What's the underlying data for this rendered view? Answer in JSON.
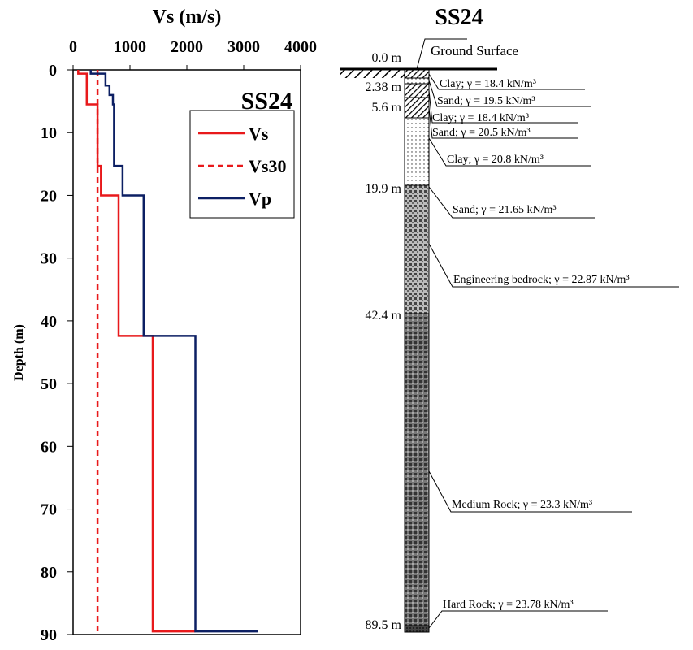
{
  "chart_data": {
    "type": "line",
    "title": "SS24",
    "xlabel": "Vs (m/s)",
    "ylabel": "Depth (m)",
    "xlim": [
      0,
      4000
    ],
    "xticks": [
      0,
      1000,
      2000,
      3000,
      4000
    ],
    "ylim": [
      0,
      90
    ],
    "yticks": [
      0,
      10,
      20,
      30,
      40,
      50,
      60,
      70,
      80,
      90
    ],
    "y_inverted": true,
    "legend": "upper right",
    "series": [
      {
        "name": "Vs",
        "color": "#e8191b",
        "dash": false,
        "x": [
          90,
          90,
          240,
          240,
          430,
          430,
          490,
          490,
          800,
          800,
          1400,
          1400,
          2150
        ],
        "values": [
          0,
          0.6,
          0.6,
          5.5,
          5.5,
          15.3,
          15.3,
          20,
          20,
          42.4,
          42.4,
          89.5,
          89.5
        ]
      },
      {
        "name": "Vs30",
        "color": "#e8191b",
        "dash": true,
        "x": [
          430,
          430
        ],
        "values": [
          0,
          90
        ]
      },
      {
        "name": "Vp",
        "color": "#0c1f63",
        "dash": false,
        "x": [
          310,
          310,
          570,
          570,
          640,
          640,
          700,
          700,
          720,
          720,
          870,
          870,
          1240,
          1240,
          2150,
          2150,
          3250
        ],
        "values": [
          0,
          0.6,
          0.6,
          2.5,
          2.5,
          4,
          4,
          5.5,
          5.5,
          15.3,
          15.3,
          20,
          20,
          42.4,
          42.4,
          89.5,
          89.5
        ]
      }
    ]
  },
  "diagram": {
    "title": "SS24",
    "surface": "Ground Surface",
    "depths": [
      "0.0 m",
      "2.38 m",
      "5.6 m",
      "19.9 m",
      "42.4 m",
      "89.5 m"
    ],
    "layers": [
      "Clay; γ = 18.4 kN/m³",
      "Sand; γ = 19.5 kN/m³",
      "Clay; γ = 18.4 kN/m³",
      "Sand; γ = 20.5 kN/m³",
      "Clay; γ = 20.8 kN/m³",
      "Sand; γ = 21.65 kN/m³",
      "Engineering bedrock; γ = 22.87 kN/m³",
      "Medium Rock; γ = 23.3 kN/m³",
      "Hard Rock; γ = 23.78 kN/m³"
    ]
  }
}
